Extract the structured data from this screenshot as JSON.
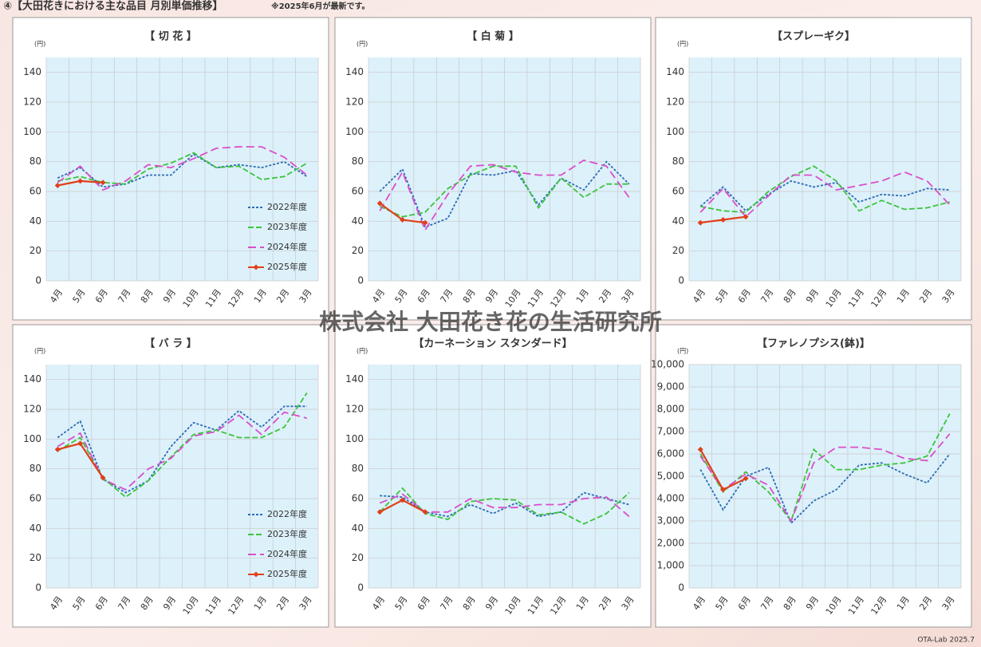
{
  "header": {
    "title": "④【大田花きにおける主な品目 月別単価推移】",
    "note": "※2025年6月が最新です。"
  },
  "watermark": "株式会社 大田花き花の生活研究所",
  "footer": "OTA-Lab 2025.7",
  "chart_data": [
    {
      "type": "line",
      "title": "【 切 花 】",
      "y_label": "(円)",
      "legend": "lower right",
      "categories": [
        "4月",
        "5月",
        "6月",
        "7月",
        "8月",
        "9月",
        "10月",
        "11月",
        "12月",
        "1月",
        "2月",
        "3月"
      ],
      "ylim": [
        0,
        150
      ],
      "yticks": [
        0,
        20,
        40,
        60,
        80,
        100,
        120,
        140
      ],
      "grid": true,
      "series": [
        {
          "name": "2022年度",
          "color": "#2e6db4",
          "dash": "dotted",
          "values": [
            69,
            76,
            63,
            65,
            71,
            71,
            85,
            76,
            78,
            76,
            80,
            70
          ]
        },
        {
          "name": "2023年度",
          "color": "#3cc43c",
          "dash": "dashed",
          "values": [
            67,
            70,
            66,
            65,
            75,
            79,
            86,
            76,
            77,
            68,
            70,
            79
          ]
        },
        {
          "name": "2024年度",
          "color": "#d94fc9",
          "dash": "longdash",
          "values": [
            66,
            77,
            61,
            67,
            78,
            76,
            82,
            89,
            90,
            90,
            83,
            71
          ]
        },
        {
          "name": "2025年度",
          "color": "#e0401a",
          "dash": "solid",
          "marker": "diamond",
          "values": [
            64,
            67,
            66,
            null,
            null,
            null,
            null,
            null,
            null,
            null,
            null,
            null
          ]
        }
      ]
    },
    {
      "type": "line",
      "title": "【 白 菊 】",
      "y_label": "(円)",
      "categories": [
        "4月",
        "5月",
        "6月",
        "7月",
        "8月",
        "9月",
        "10月",
        "11月",
        "12月",
        "1月",
        "2月",
        "3月"
      ],
      "ylim": [
        0,
        150
      ],
      "yticks": [
        0,
        20,
        40,
        60,
        80,
        100,
        120,
        140
      ],
      "grid": true,
      "series": [
        {
          "color": "#2e6db4",
          "dash": "dotted",
          "values": [
            60,
            75,
            36,
            42,
            72,
            71,
            74,
            51,
            69,
            61,
            80,
            65
          ]
        },
        {
          "color": "#3cc43c",
          "dash": "dashed",
          "values": [
            50,
            43,
            46,
            62,
            71,
            77,
            77,
            49,
            69,
            56,
            65,
            65
          ]
        },
        {
          "color": "#d94fc9",
          "dash": "longdash",
          "values": [
            47,
            73,
            34,
            58,
            77,
            78,
            73,
            71,
            71,
            81,
            77,
            56
          ]
        },
        {
          "color": "#e0401a",
          "dash": "solid",
          "marker": "diamond",
          "values": [
            52,
            41,
            39,
            null,
            null,
            null,
            null,
            null,
            null,
            null,
            null,
            null
          ]
        }
      ]
    },
    {
      "type": "line",
      "title": "【スプレーギク】",
      "y_label": "(円)",
      "categories": [
        "4月",
        "5月",
        "6月",
        "7月",
        "8月",
        "9月",
        "10月",
        "11月",
        "12月",
        "1月",
        "2月",
        "3月"
      ],
      "ylim": [
        0,
        150
      ],
      "yticks": [
        0,
        20,
        40,
        60,
        80,
        100,
        120,
        140
      ],
      "grid": true,
      "series": [
        {
          "color": "#2e6db4",
          "dash": "dotted",
          "values": [
            50,
            63,
            47,
            58,
            67,
            63,
            66,
            53,
            58,
            57,
            62,
            61
          ]
        },
        {
          "color": "#3cc43c",
          "dash": "dashed",
          "values": [
            50,
            47,
            46,
            60,
            70,
            77,
            67,
            47,
            54,
            48,
            49,
            53
          ]
        },
        {
          "color": "#d94fc9",
          "dash": "longdash",
          "values": [
            46,
            62,
            43,
            57,
            71,
            71,
            61,
            64,
            67,
            73,
            67,
            51
          ]
        },
        {
          "color": "#e0401a",
          "dash": "solid",
          "marker": "diamond",
          "values": [
            39,
            41,
            43,
            null,
            null,
            null,
            null,
            null,
            null,
            null,
            null,
            null
          ]
        }
      ]
    },
    {
      "type": "line",
      "title": "【 バ ラ 】",
      "y_label": "(円)",
      "legend": "lower right",
      "categories": [
        "4月",
        "5月",
        "6月",
        "7月",
        "8月",
        "9月",
        "10月",
        "11月",
        "12月",
        "1月",
        "2月",
        "3月"
      ],
      "ylim": [
        0,
        150
      ],
      "yticks": [
        0,
        20,
        40,
        60,
        80,
        100,
        120,
        140
      ],
      "grid": true,
      "series": [
        {
          "name": "2022年度",
          "color": "#2e6db4",
          "dash": "dotted",
          "values": [
            101,
            112,
            73,
            64,
            72,
            95,
            111,
            106,
            119,
            108,
            122,
            122
          ]
        },
        {
          "name": "2023年度",
          "color": "#3cc43c",
          "dash": "dashed",
          "values": [
            92,
            101,
            74,
            61,
            72,
            88,
            103,
            106,
            101,
            101,
            108,
            131
          ]
        },
        {
          "name": "2024年度",
          "color": "#d94fc9",
          "dash": "longdash",
          "values": [
            95,
            104,
            73,
            66,
            80,
            87,
            102,
            105,
            116,
            103,
            118,
            114
          ]
        },
        {
          "name": "2025年度",
          "color": "#e0401a",
          "dash": "solid",
          "marker": "diamond",
          "values": [
            93,
            97,
            74,
            null,
            null,
            null,
            null,
            null,
            null,
            null,
            null,
            null
          ]
        }
      ]
    },
    {
      "type": "line",
      "title": "【カーネーション スタンダード】",
      "y_label": "(円)",
      "categories": [
        "4月",
        "5月",
        "6月",
        "7月",
        "8月",
        "9月",
        "10月",
        "11月",
        "12月",
        "1月",
        "2月",
        "3月"
      ],
      "ylim": [
        0,
        150
      ],
      "yticks": [
        0,
        20,
        40,
        60,
        80,
        100,
        120,
        140
      ],
      "grid": true,
      "series": [
        {
          "color": "#2e6db4",
          "dash": "dotted",
          "values": [
            62,
            61,
            51,
            48,
            56,
            50,
            57,
            48,
            51,
            64,
            60,
            56
          ]
        },
        {
          "color": "#3cc43c",
          "dash": "dashed",
          "values": [
            51,
            67,
            50,
            46,
            58,
            60,
            59,
            49,
            51,
            43,
            50,
            64
          ]
        },
        {
          "color": "#d94fc9",
          "dash": "longdash",
          "values": [
            57,
            63,
            51,
            51,
            60,
            54,
            54,
            56,
            56,
            60,
            61,
            48
          ]
        },
        {
          "color": "#e0401a",
          "dash": "solid",
          "marker": "diamond",
          "values": [
            51,
            59,
            51,
            null,
            null,
            null,
            null,
            null,
            null,
            null,
            null,
            null
          ]
        }
      ]
    },
    {
      "type": "line",
      "title": "【ファレノプシス(鉢)】",
      "y_label": "(円)",
      "categories": [
        "4月",
        "5月",
        "6月",
        "7月",
        "8月",
        "9月",
        "10月",
        "11月",
        "12月",
        "1月",
        "2月",
        "3月"
      ],
      "ylim": [
        0,
        10000
      ],
      "yticks": [
        0,
        {
          "value": 1000,
          "label": "1,000"
        },
        {
          "value": 2000,
          "label": "2,000"
        },
        {
          "value": 3000,
          "label": "3,000"
        },
        {
          "value": 4000,
          "label": "4,000"
        },
        {
          "value": 5000,
          "label": "5,000"
        },
        {
          "value": 6000,
          "label": "6,000"
        },
        {
          "value": 7000,
          "label": "7,000"
        },
        {
          "value": 8000,
          "label": "8,000"
        },
        {
          "value": 9000,
          "label": "9,000"
        },
        {
          "value": 10000,
          "label": "10,000"
        }
      ],
      "grid": true,
      "series": [
        {
          "color": "#2e6db4",
          "dash": "dotted",
          "values": [
            5300,
            3500,
            5000,
            5400,
            2900,
            3900,
            4400,
            5500,
            5600,
            5100,
            4700,
            6000
          ]
        },
        {
          "color": "#3cc43c",
          "dash": "dashed",
          "values": [
            6000,
            4300,
            5200,
            4300,
            3000,
            6200,
            5300,
            5300,
            5500,
            5600,
            5900,
            7800
          ]
        },
        {
          "color": "#d94fc9",
          "dash": "longdash",
          "values": [
            5900,
            4400,
            5100,
            4600,
            3000,
            5600,
            6300,
            6300,
            6200,
            5800,
            5700,
            6900
          ]
        },
        {
          "color": "#e0401a",
          "dash": "solid",
          "marker": "diamond",
          "values": [
            6200,
            4400,
            4900,
            null,
            null,
            null,
            null,
            null,
            null,
            null,
            null,
            null
          ]
        }
      ]
    }
  ]
}
